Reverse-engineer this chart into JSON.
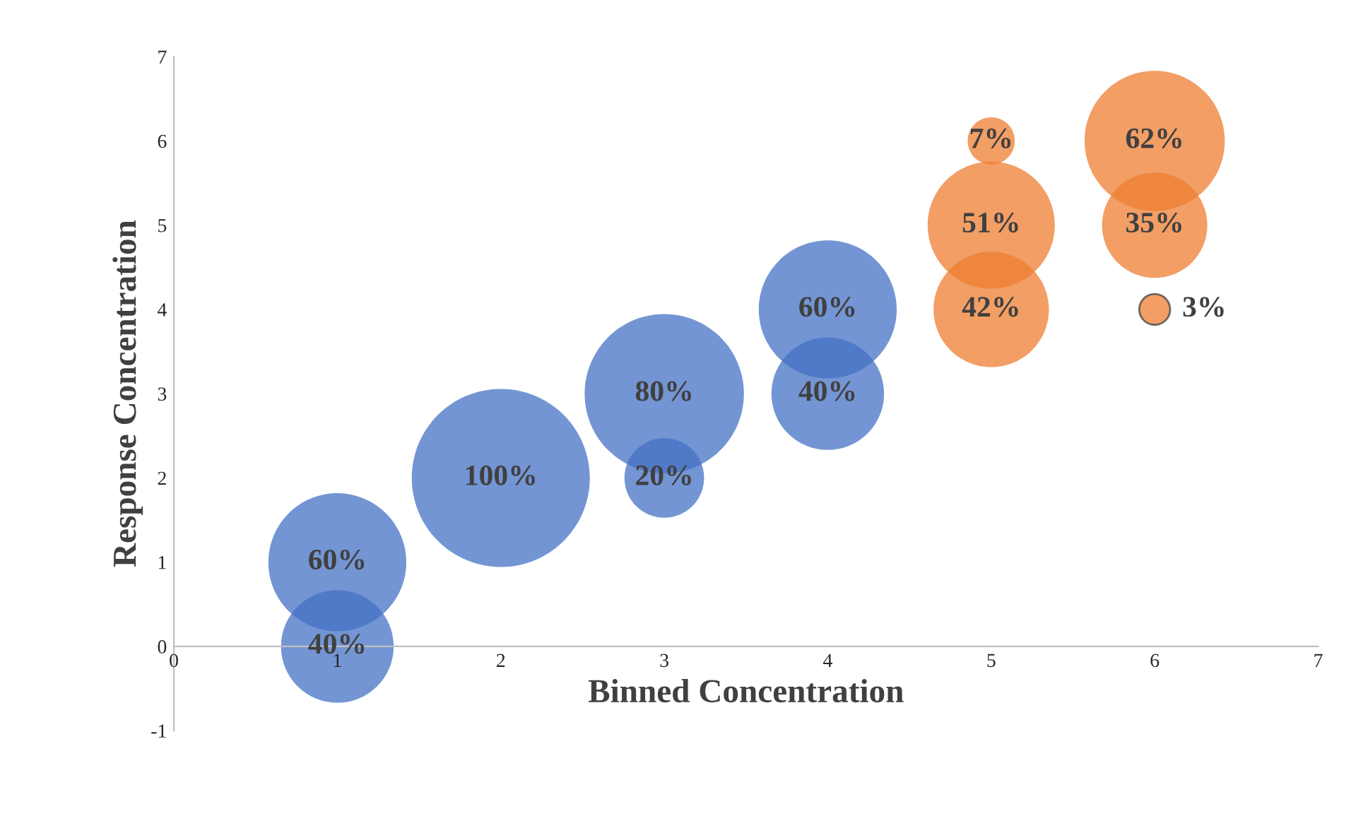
{
  "chart_data": {
    "type": "bubble",
    "xlabel": "Binned Concentration",
    "ylabel": "Response Concentration",
    "xlim": [
      0,
      7
    ],
    "xticks": [
      0,
      1,
      2,
      3,
      4,
      5,
      6,
      7
    ],
    "ylim": [
      -1,
      7
    ],
    "yticks": [
      -1,
      0,
      1,
      2,
      3,
      4,
      5,
      6,
      7
    ],
    "grid": false,
    "legend": false,
    "series": [
      {
        "color": "#4472c4",
        "x": [
          1,
          1,
          2,
          3,
          3,
          4,
          4
        ],
        "values": [
          0,
          1,
          2,
          2,
          3,
          3,
          4
        ],
        "sizes": [
          40,
          60,
          100,
          20,
          80,
          40,
          60
        ],
        "value_labels": [
          "40%",
          "60%",
          "100%",
          "20%",
          "80%",
          "40%",
          "60%"
        ]
      },
      {
        "color": "#ed7d31",
        "x": [
          5,
          5,
          5,
          6,
          6,
          6
        ],
        "values": [
          4,
          5,
          6,
          4,
          5,
          6
        ],
        "sizes": [
          42,
          51,
          7,
          3,
          35,
          62
        ],
        "value_labels": [
          "42%",
          "51%",
          "7%",
          "3%",
          "35%",
          "62%"
        ]
      }
    ]
  }
}
